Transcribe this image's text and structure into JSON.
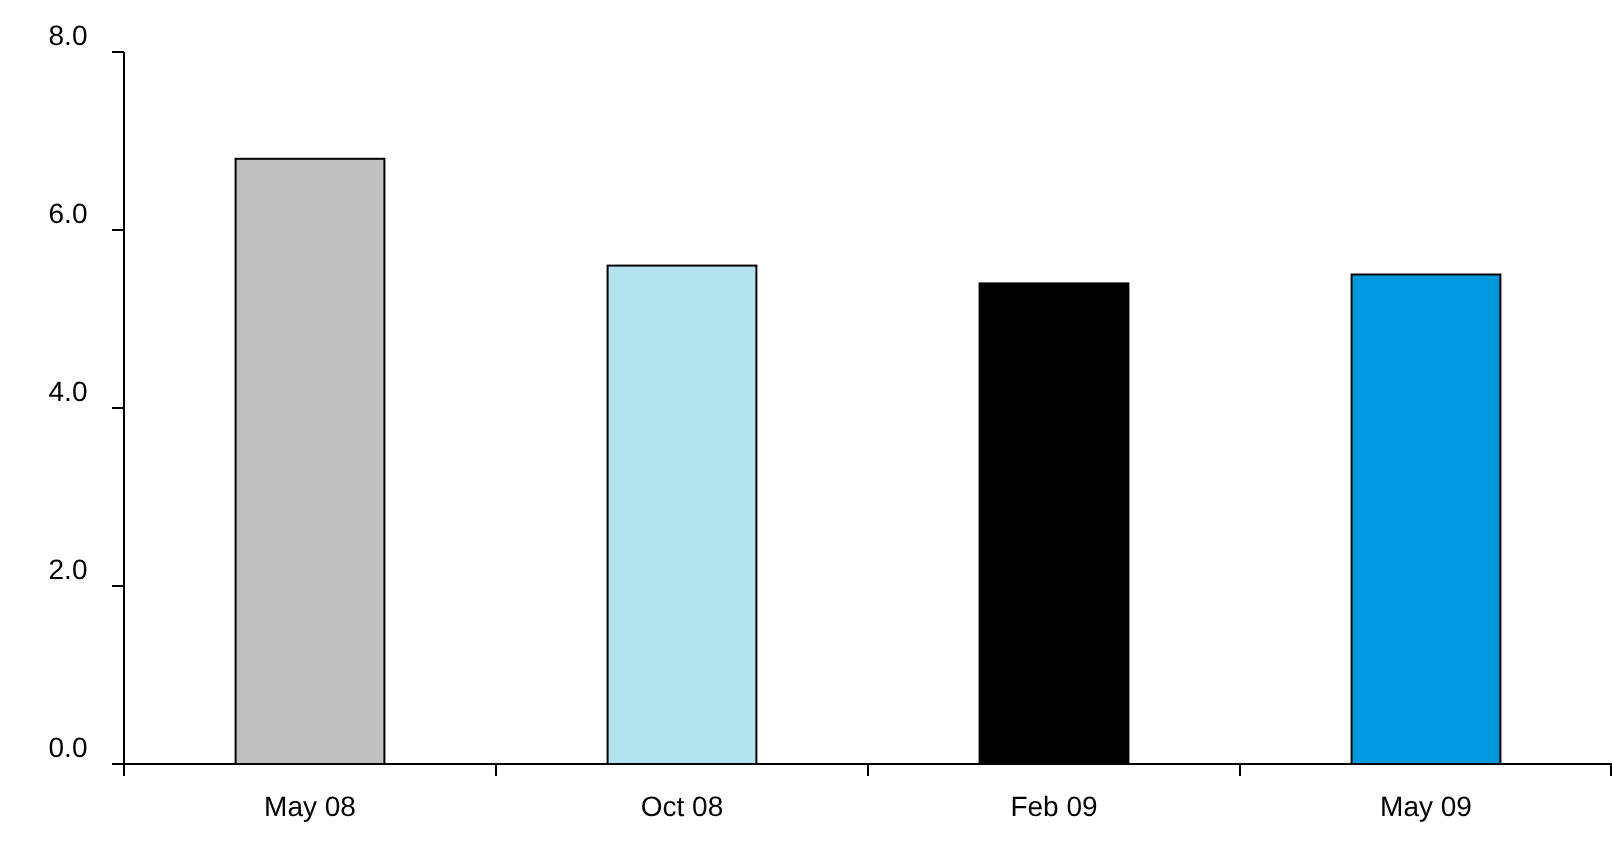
{
  "chart_data": {
    "type": "bar",
    "categories": [
      "May 08",
      "Oct 08",
      "Feb 09",
      "May 09"
    ],
    "values": [
      6.8,
      5.6,
      5.4,
      5.5
    ],
    "colors": [
      "#c0c0c0",
      "#b3e3ee",
      "#000000",
      "#0099dd"
    ],
    "ylim": [
      0,
      8
    ],
    "yticks": [
      {
        "value": 0,
        "label": "0.0"
      },
      {
        "value": 2,
        "label": "2.0"
      },
      {
        "value": 4,
        "label": "4.0"
      },
      {
        "value": 6,
        "label": "6.0"
      },
      {
        "value": 8,
        "label": "8.0"
      }
    ],
    "grid": false
  }
}
